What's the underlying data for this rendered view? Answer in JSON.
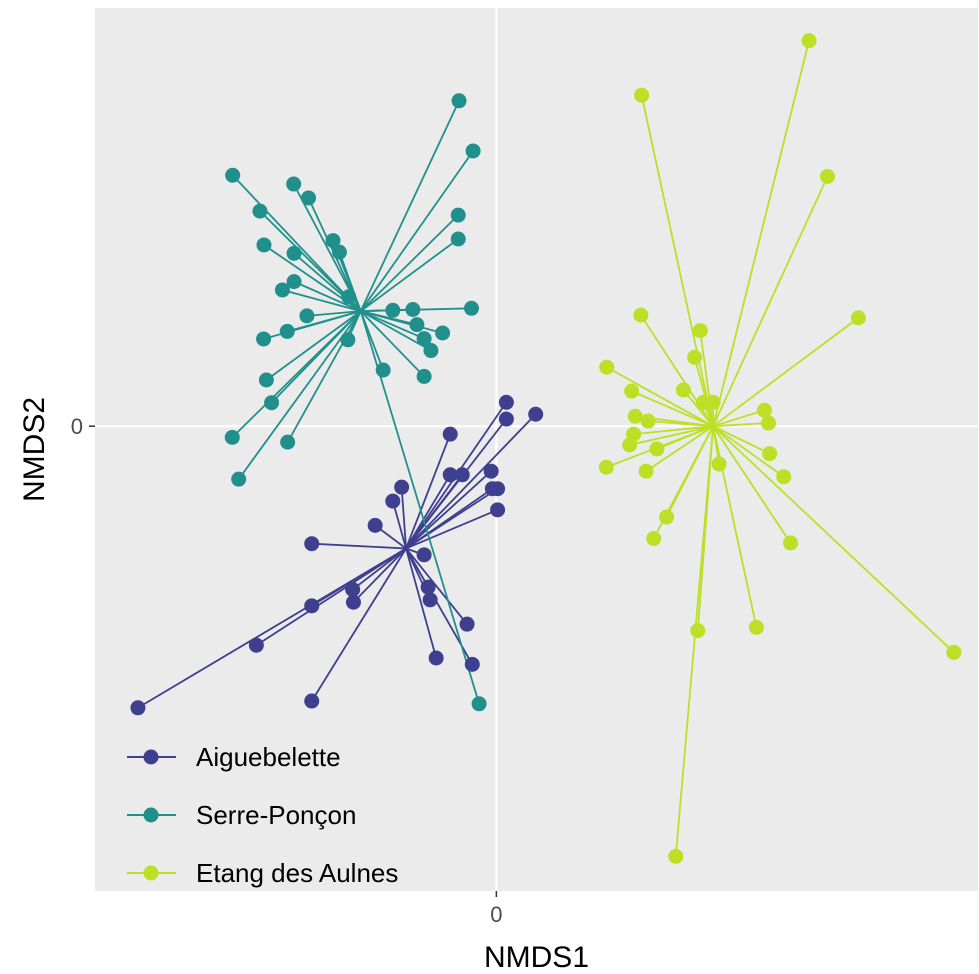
{
  "chart_data": {
    "type": "scatter",
    "xlabel": "NMDS1",
    "ylabel": "NMDS2",
    "xlim": [
      -1.0,
      1.2
    ],
    "ylim": [
      -1.167,
      1.05
    ],
    "x_ticks": [
      {
        "value": 0,
        "label": "0"
      }
    ],
    "y_ticks": [
      {
        "value": 0,
        "label": "0"
      }
    ],
    "grid": true,
    "legend_position": "bottom-left",
    "series": [
      {
        "name": "Aiguebelette",
        "color": "#3f3f8f",
        "centroid": [
          -0.225,
          -0.307
        ],
        "points": [
          [
            -0.893,
            -0.707
          ],
          [
            -0.598,
            -0.55
          ],
          [
            -0.46,
            -0.451
          ],
          [
            -0.356,
            -0.442
          ],
          [
            -0.358,
            -0.41
          ],
          [
            -0.46,
            -0.295
          ],
          [
            -0.302,
            -0.249
          ],
          [
            -0.258,
            -0.188
          ],
          [
            -0.236,
            -0.153
          ],
          [
            -0.18,
            -0.323
          ],
          [
            -0.17,
            -0.404
          ],
          [
            -0.165,
            -0.436
          ],
          [
            -0.15,
            -0.582
          ],
          [
            -0.073,
            -0.497
          ],
          [
            -0.06,
            -0.598
          ],
          [
            -0.46,
            -0.69
          ],
          [
            -0.115,
            -0.122
          ],
          [
            -0.085,
            -0.122
          ],
          [
            -0.013,
            -0.113
          ],
          [
            -0.01,
            -0.157
          ],
          [
            0.003,
            -0.157
          ],
          [
            0.003,
            -0.21
          ],
          [
            -0.115,
            -0.02
          ],
          [
            0.025,
            0.018
          ],
          [
            0.025,
            0.06
          ],
          [
            0.098,
            0.03
          ]
        ]
      },
      {
        "name": "Serre-Ponçon",
        "color": "#21908c",
        "centroid": [
          -0.338,
          0.289
        ],
        "points": [
          [
            -0.657,
            0.63
          ],
          [
            -0.505,
            0.608
          ],
          [
            -0.504,
            0.434
          ],
          [
            -0.504,
            0.363
          ],
          [
            -0.468,
            0.573
          ],
          [
            -0.407,
            0.466
          ],
          [
            -0.391,
            0.437
          ],
          [
            -0.368,
            0.325
          ],
          [
            -0.589,
            0.54
          ],
          [
            -0.579,
            0.455
          ],
          [
            -0.58,
            0.219
          ],
          [
            -0.533,
            0.342
          ],
          [
            -0.521,
            0.238
          ],
          [
            -0.472,
            0.277
          ],
          [
            -0.573,
            0.116
          ],
          [
            -0.56,
            0.059
          ],
          [
            -0.52,
            -0.04
          ],
          [
            -0.658,
            -0.028
          ],
          [
            -0.642,
            -0.133
          ],
          [
            -0.37,
            0.217
          ],
          [
            -0.258,
            0.291
          ],
          [
            -0.208,
            0.293
          ],
          [
            -0.198,
            0.255
          ],
          [
            -0.18,
            0.22
          ],
          [
            -0.163,
            0.19
          ],
          [
            -0.134,
            0.234
          ],
          [
            -0.282,
            0.141
          ],
          [
            -0.18,
            0.125
          ],
          [
            -0.062,
            0.296
          ],
          [
            -0.095,
            0.53
          ],
          [
            -0.095,
            0.47
          ],
          [
            -0.058,
            0.691
          ],
          [
            -0.093,
            0.817
          ],
          [
            -0.043,
            -0.697
          ]
        ]
      },
      {
        "name": "Etang des Aulnes",
        "color": "#bddf26",
        "centroid": [
          0.54,
          0.0
        ],
        "points": [
          [
            0.362,
            0.831
          ],
          [
            0.36,
            0.279
          ],
          [
            0.508,
            0.24
          ],
          [
            0.494,
            0.173
          ],
          [
            0.466,
            0.091
          ],
          [
            0.275,
            0.148
          ],
          [
            0.337,
            0.088
          ],
          [
            0.346,
            0.025
          ],
          [
            0.274,
            -0.103
          ],
          [
            0.342,
            -0.02
          ],
          [
            0.332,
            -0.047
          ],
          [
            0.378,
            0.013
          ],
          [
            0.4,
            -0.057
          ],
          [
            0.373,
            -0.113
          ],
          [
            0.424,
            -0.228
          ],
          [
            0.392,
            -0.282
          ],
          [
            0.516,
            0.06
          ],
          [
            0.54,
            0.06
          ],
          [
            0.555,
            -0.095
          ],
          [
            0.668,
            0.04
          ],
          [
            0.678,
            0.008
          ],
          [
            0.681,
            -0.069
          ],
          [
            0.716,
            -0.127
          ],
          [
            0.733,
            -0.293
          ],
          [
            0.902,
            0.272
          ],
          [
            0.825,
            0.627
          ],
          [
            0.779,
            0.968
          ],
          [
            0.648,
            -0.505
          ],
          [
            0.502,
            -0.513
          ],
          [
            0.447,
            -1.08
          ],
          [
            1.14,
            -0.568
          ]
        ]
      }
    ]
  }
}
